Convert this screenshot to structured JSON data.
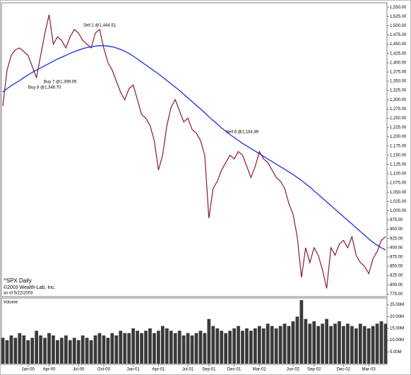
{
  "chart_data": [
    {
      "type": "line",
      "title": "^SPX Daily",
      "notes": [
        "©2003 Wealth-Lab, Inc.",
        "as of 5/22/2003"
      ],
      "annotations": [
        "Sell 1 @1,444.51",
        "Buy 7 @1,399.05",
        "Buy 8 @1,346.70",
        "Sell 8 @1,164.89"
      ],
      "categories": [
        null,
        null,
        null,
        null,
        null,
        null,
        "Jan-00",
        null,
        null,
        null,
        null,
        "Apr-00",
        null,
        null,
        null,
        null,
        null,
        null,
        "Jul-00",
        null,
        null,
        null,
        null,
        null,
        "Oct-00",
        null,
        null,
        null,
        null,
        null,
        null,
        "Jan-01",
        null,
        null,
        null,
        null,
        null,
        "Apr-01",
        null,
        null,
        null,
        null,
        null,
        null,
        "Jul-01",
        null,
        null,
        null,
        null,
        "Sep-01",
        null,
        null,
        null,
        null,
        null,
        "Dec-01",
        null,
        null,
        null,
        null,
        null,
        "Mar-02",
        null,
        null,
        null,
        null,
        null,
        null,
        null,
        "Jun-02",
        null,
        null,
        null,
        null,
        "Sep-02",
        null,
        null,
        null,
        null,
        null,
        null,
        "Dec-02",
        null,
        null,
        null,
        null,
        null,
        "Mar-03",
        null,
        null,
        null,
        null
      ],
      "series": [
        {
          "color": "#8b1a2b",
          "values": [
            1283,
            1380,
            1420,
            1435,
            1440,
            1430,
            1420,
            1390,
            1360,
            1420,
            1480,
            1530,
            1450,
            1470,
            1460,
            1440,
            1470,
            1490,
            1480,
            1460,
            1450,
            1440,
            1480,
            1490,
            1440,
            1400,
            1380,
            1350,
            1320,
            1300,
            1330,
            1340,
            1300,
            1260,
            1250,
            1230,
            1190,
            1110,
            1150,
            1230,
            1280,
            1300,
            1270,
            1240,
            1250,
            1220,
            1210,
            1190,
            1150,
            980,
            1060,
            1080,
            1110,
            1130,
            1150,
            1140,
            1160,
            1150,
            1120,
            1090,
            1120,
            1160,
            1140,
            1130,
            1110,
            1090,
            1080,
            1060,
            1020,
            990,
            930,
            820,
            900,
            860,
            900,
            880,
            840,
            790,
            900,
            880,
            910,
            920,
            900,
            930,
            880,
            860,
            850,
            830,
            870,
            890,
            920,
            930
          ]
        },
        {
          "color": "#1f2fd0",
          "values": [
            1321,
            1330,
            1338,
            1345,
            1352,
            1360,
            1367,
            1374,
            1380,
            1386,
            1392,
            1398,
            1404,
            1410,
            1415,
            1420,
            1425,
            1430,
            1434,
            1438,
            1441,
            1443,
            1445,
            1446,
            1446,
            1445,
            1443,
            1440,
            1436,
            1431,
            1425,
            1418,
            1410,
            1402,
            1394,
            1386,
            1378,
            1370,
            1361,
            1352,
            1343,
            1334,
            1325,
            1315,
            1305,
            1295,
            1285,
            1275,
            1265,
            1254,
            1244,
            1234,
            1224,
            1215,
            1206,
            1198,
            1190,
            1182,
            1175,
            1168,
            1161,
            1154,
            1147,
            1140,
            1133,
            1126,
            1119,
            1112,
            1105,
            1098,
            1090,
            1082,
            1073,
            1064,
            1054,
            1044,
            1034,
            1024,
            1014,
            1004,
            994,
            984,
            974,
            964,
            954,
            944,
            934,
            924,
            915,
            907,
            900,
            894
          ]
        }
      ],
      "ylim": [
        768,
        1560
      ],
      "yticks": [
        {
          "value": 1550,
          "label": "1,550.00"
        },
        {
          "value": 1525,
          "label": "1,525.00"
        },
        {
          "value": 1500,
          "label": "1,500.00"
        },
        {
          "value": 1475,
          "label": "1,475.00"
        },
        {
          "value": 1450,
          "label": "1,450.00"
        },
        {
          "value": 1425,
          "label": "1,425.00"
        },
        {
          "value": 1400,
          "label": "1,400.00"
        },
        {
          "value": 1375,
          "label": "1,375.00"
        },
        {
          "value": 1350,
          "label": "1,350.00"
        },
        {
          "value": 1325,
          "label": "1,325.00"
        },
        {
          "value": 1300,
          "label": "1,300.00"
        },
        {
          "value": 1275,
          "label": "1,275.00"
        },
        {
          "value": 1250,
          "label": "1,250.00"
        },
        {
          "value": 1225,
          "label": "1,225.00"
        },
        {
          "value": 1200,
          "label": "1,200.00"
        },
        {
          "value": 1175,
          "label": "1,175.00"
        },
        {
          "value": 1150,
          "label": "1,150.00"
        },
        {
          "value": 1125,
          "label": "1,125.00"
        },
        {
          "value": 1100,
          "label": "1,100.00"
        },
        {
          "value": 1075,
          "label": "1,075.00"
        },
        {
          "value": 1050,
          "label": "1,050.00"
        },
        {
          "value": 1025,
          "label": "1,025.00"
        },
        {
          "value": 1000,
          "label": "1,000.00"
        },
        {
          "value": 975,
          "label": "975.00"
        },
        {
          "value": 950,
          "label": "950.00"
        },
        {
          "value": 925,
          "label": "925.00"
        },
        {
          "value": 900,
          "label": "900.00"
        },
        {
          "value": 875,
          "label": "875.00"
        },
        {
          "value": 850,
          "label": "850.00"
        },
        {
          "value": 825,
          "label": "825.00"
        },
        {
          "value": 800,
          "label": "800.00"
        },
        {
          "value": 775,
          "label": "775.00"
        }
      ],
      "grid": false
    },
    {
      "type": "bar",
      "title": "Volume",
      "color": "#3a3a3a",
      "values": [
        11,
        10,
        12,
        11,
        13,
        12,
        10,
        11,
        14,
        12,
        11,
        13,
        12,
        10,
        11,
        12,
        10,
        11,
        10,
        12,
        11,
        10,
        12,
        13,
        12,
        11,
        13,
        12,
        14,
        13,
        13,
        15,
        14,
        13,
        14,
        15,
        13,
        14,
        16,
        15,
        14,
        13,
        14,
        12,
        13,
        12,
        13,
        14,
        13,
        19,
        16,
        15,
        14,
        13,
        14,
        15,
        16,
        14,
        15,
        14,
        15,
        16,
        15,
        17,
        16,
        15,
        16,
        17,
        16,
        18,
        20,
        27,
        19,
        17,
        18,
        16,
        17,
        19,
        16,
        17,
        18,
        16,
        17,
        16,
        15,
        17,
        16,
        15,
        16,
        17,
        18,
        17
      ],
      "ylim": [
        0,
        27
      ],
      "yticks": [
        {
          "value": 25,
          "label": "25.00M"
        },
        {
          "value": 20,
          "label": "20.00M"
        },
        {
          "value": 15,
          "label": "15.00M"
        },
        {
          "value": 10,
          "label": "10.00M"
        },
        {
          "value": 5,
          "label": "5.00M"
        }
      ],
      "grid": false
    }
  ]
}
